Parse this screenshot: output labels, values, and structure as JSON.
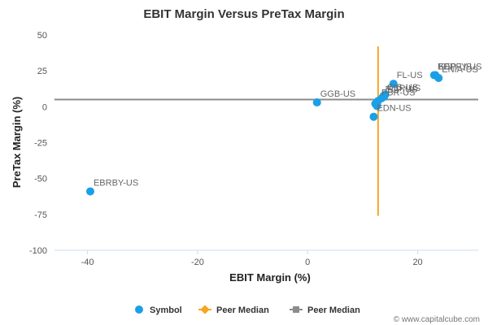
{
  "chart_data": {
    "type": "scatter",
    "title": "EBIT Margin Versus PreTax Margin",
    "xlabel": "EBIT Margin (%)",
    "ylabel": "PreTax Margin (%)",
    "xlim": [
      -46,
      31
    ],
    "ylim": [
      -100,
      50
    ],
    "x_ticks": [
      -40,
      -20,
      0,
      20
    ],
    "y_ticks": [
      50,
      25,
      0,
      -25,
      -50,
      -75,
      -100
    ],
    "grid": false,
    "legend_position": "bottom",
    "colors": {
      "symbol": "#1aa0e8",
      "x_median": "#f5a623",
      "y_median": "#8c8c8c"
    },
    "series": [
      {
        "name": "Symbol",
        "points": [
          {
            "label": "EBRBY-US",
            "x": -39.5,
            "y": -59
          },
          {
            "label": "GGB-US",
            "x": 1.7,
            "y": 3
          },
          {
            "label": "EDN-US",
            "x": 12.0,
            "y": -7
          },
          {
            "label": "",
            "x": 12.3,
            "y": 2
          },
          {
            "label": "",
            "x": 12.6,
            "y": 0.5
          },
          {
            "label": "PBR-US",
            "x": 12.8,
            "y": 4
          },
          {
            "label": "ELP-US",
            "x": 13.5,
            "y": 6
          },
          {
            "label": "CIG-US",
            "x": 13.8,
            "y": 7.5
          },
          {
            "label": "",
            "x": 14.1,
            "y": 8.5
          },
          {
            "label": "KEP-US",
            "x": 13.9,
            "y": 7
          },
          {
            "label": "FL-US",
            "x": 15.6,
            "y": 16
          },
          {
            "label": "EDPFY-US",
            "x": 23.0,
            "y": 22
          },
          {
            "label": "KEP-US",
            "x": 23.2,
            "y": 22
          },
          {
            "label": "ENIA-US",
            "x": 23.8,
            "y": 20
          }
        ]
      },
      {
        "name": "Peer Median",
        "type": "vertical-line",
        "x": 12.8,
        "y_range": [
          -76,
          42
        ]
      },
      {
        "name": "Peer Median",
        "type": "horizontal-line",
        "y": 5
      }
    ]
  },
  "watermark": "© www.capitalcube.com"
}
